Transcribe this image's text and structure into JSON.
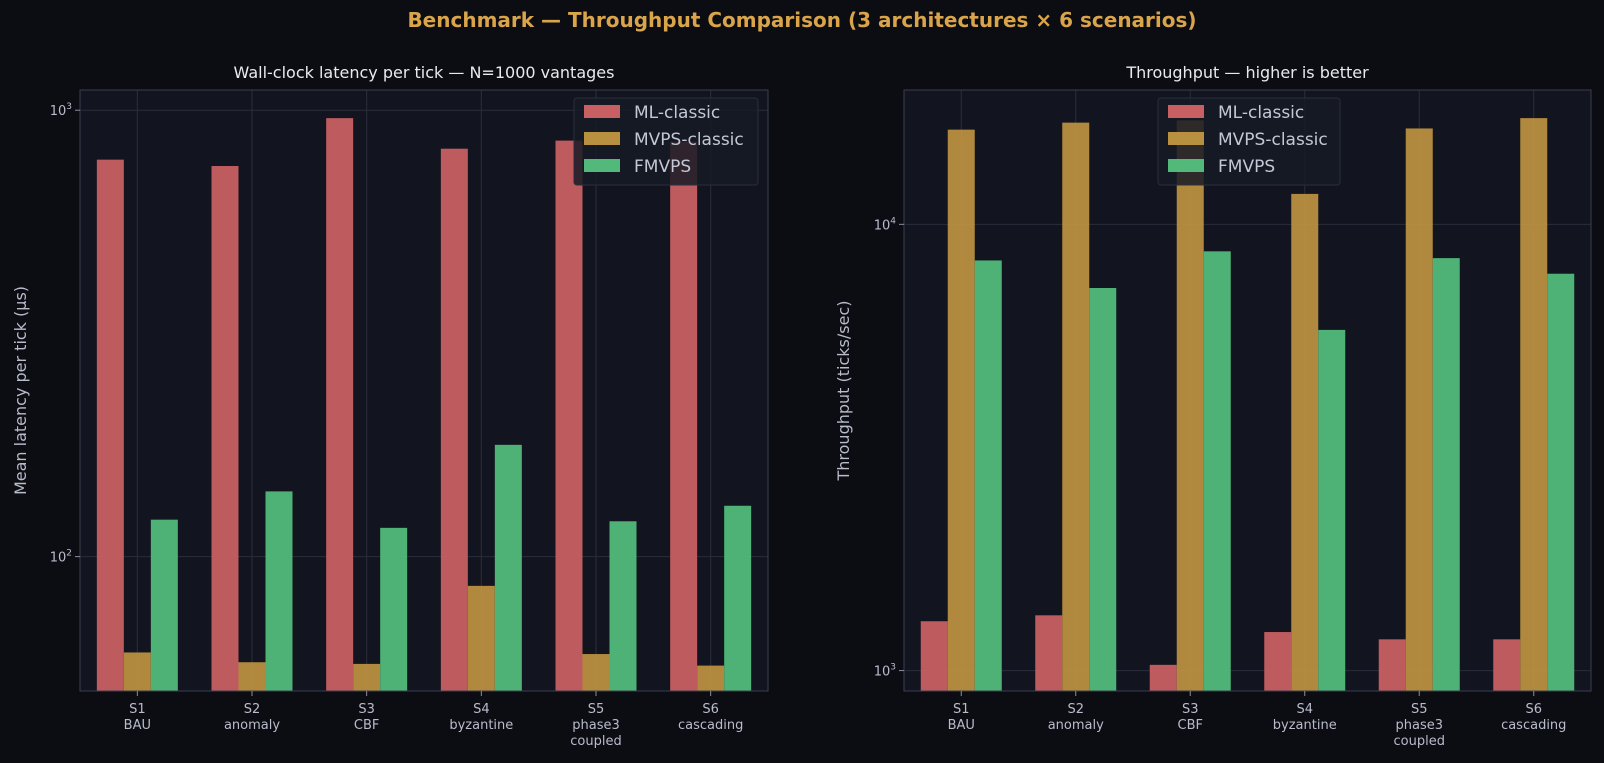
{
  "figure": {
    "suptitle": "Benchmark — Throughput Comparison (3 architectures × 6 scenarios)"
  },
  "chart_data": [
    {
      "type": "bar",
      "title": "Wall-clock latency per tick — N=1000 vantages",
      "xlabel": "",
      "ylabel": "Mean latency per tick (µs)",
      "yscale": "log",
      "ylim": [
        50,
        1110
      ],
      "yticks": [
        100,
        1000
      ],
      "ytick_labels": [
        [
          "10",
          "2"
        ],
        [
          "10",
          "3"
        ]
      ],
      "grid": true,
      "legend_position": "upper right",
      "categories": [
        [
          "S1",
          "BAU"
        ],
        [
          "S2",
          "anomaly"
        ],
        [
          "S3",
          "CBF"
        ],
        [
          "S4",
          "byzantine"
        ],
        [
          "S5",
          "phase3",
          "coupled"
        ],
        [
          "S6",
          "cascading"
        ]
      ],
      "series": [
        {
          "name": "ML-classic",
          "color": "#c85f62",
          "values": [
            775,
            750,
            960,
            820,
            855,
            850
          ]
        },
        {
          "name": "MVPS-classic",
          "color": "#b98f40",
          "values": [
            61,
            58,
            57.5,
            86,
            60.5,
            57
          ]
        },
        {
          "name": "FMVPS",
          "color": "#52b97a",
          "values": [
            121,
            140,
            116,
            178,
            120,
            130
          ]
        }
      ]
    },
    {
      "type": "bar",
      "title": "Throughput — higher is better",
      "xlabel": "",
      "ylabel": "Throughput (ticks/sec)",
      "yscale": "log",
      "ylim": [
        900,
        20000
      ],
      "yticks": [
        1000,
        10000
      ],
      "ytick_labels": [
        [
          "10",
          "3"
        ],
        [
          "10",
          "4"
        ]
      ],
      "grid": true,
      "legend_position": "upper center",
      "categories": [
        [
          "S1",
          "BAU"
        ],
        [
          "S2",
          "anomaly"
        ],
        [
          "S3",
          "CBF"
        ],
        [
          "S4",
          "byzantine"
        ],
        [
          "S5",
          "phase3",
          "coupled"
        ],
        [
          "S6",
          "cascading"
        ]
      ],
      "series": [
        {
          "name": "ML-classic",
          "color": "#c85f62",
          "values": [
            1290,
            1330,
            1030,
            1220,
            1175,
            1175
          ]
        },
        {
          "name": "MVPS-classic",
          "color": "#b98f40",
          "values": [
            16300,
            16900,
            17100,
            11700,
            16400,
            17300
          ]
        },
        {
          "name": "FMVPS",
          "color": "#52b97a",
          "values": [
            8300,
            7200,
            8700,
            5800,
            8400,
            7750
          ]
        }
      ]
    }
  ]
}
